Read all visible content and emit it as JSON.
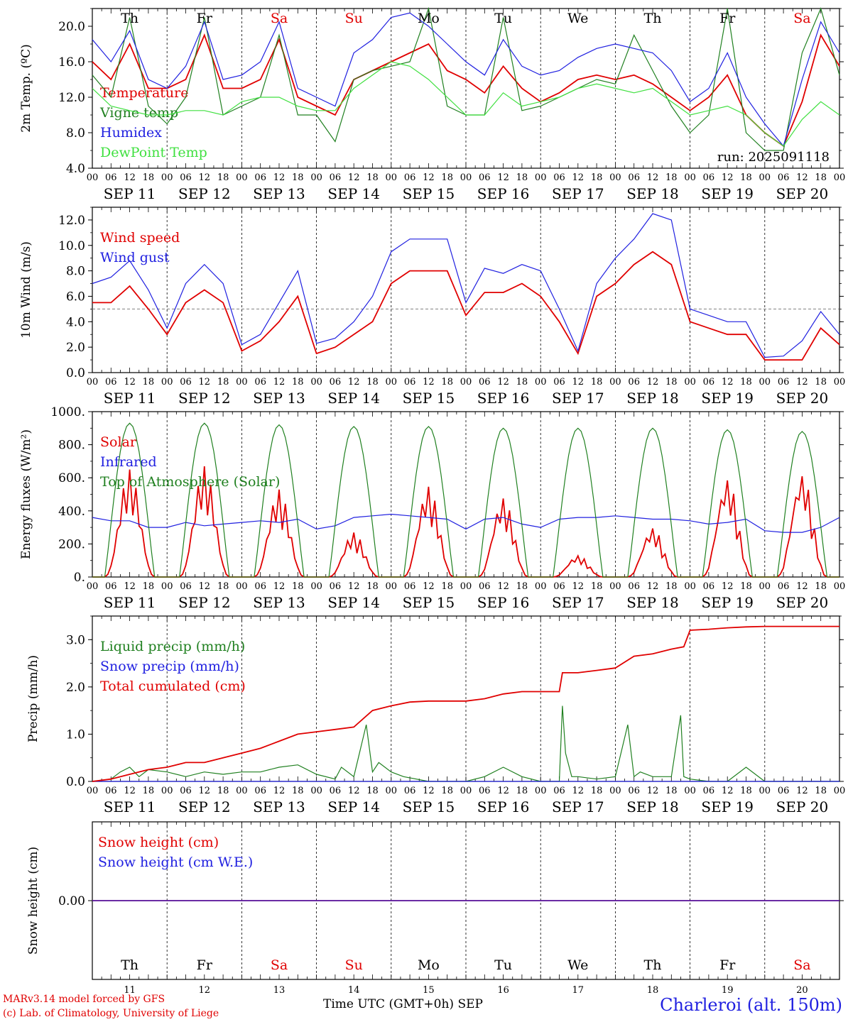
{
  "chart_data": [
    {
      "type": "line",
      "ylabel": "2m Temp. (ºC)",
      "ylim": [
        4,
        22
      ],
      "yticks": [
        "4.0",
        "8.0",
        "12.0",
        "16.0",
        "20.0"
      ],
      "ytick_values": [
        4,
        8,
        12,
        16,
        20
      ],
      "annotation": "run: 2025091118",
      "top_day_labels": [
        "Th",
        "Fr",
        "Sa",
        "Su",
        "Mo",
        "Tu",
        "We",
        "Th",
        "Fr",
        "Sa"
      ],
      "series": [
        {
          "name": "Temperature",
          "color": "#e00000",
          "x": [
            0,
            6,
            12,
            18,
            24,
            30,
            36,
            42,
            48,
            54,
            60,
            66,
            72,
            78,
            84,
            90,
            96,
            102,
            108,
            114,
            120,
            126,
            132,
            138,
            144,
            150,
            156,
            162,
            168,
            174,
            180,
            186,
            192,
            198,
            204,
            210,
            216,
            222,
            228,
            234,
            240
          ],
          "values": [
            16,
            14,
            18,
            13,
            13,
            14,
            19,
            13,
            13,
            14,
            18.5,
            12,
            11,
            10,
            14,
            15,
            16,
            17,
            18,
            15,
            14,
            12.5,
            15.5,
            13,
            11.5,
            12.5,
            14,
            14.5,
            14,
            14.5,
            13.5,
            12,
            10.5,
            12,
            14.5,
            10,
            8,
            6.5,
            11.5,
            19,
            15.5
          ]
        },
        {
          "name": "Vigne temp",
          "color": "#208020",
          "x": [
            0,
            6,
            12,
            18,
            24,
            30,
            36,
            42,
            48,
            54,
            60,
            66,
            72,
            78,
            84,
            90,
            96,
            102,
            108,
            114,
            120,
            126,
            132,
            138,
            144,
            150,
            156,
            162,
            168,
            174,
            180,
            186,
            192,
            198,
            204,
            210,
            216,
            222,
            228,
            234,
            240
          ],
          "values": [
            14.5,
            12,
            21,
            11,
            9,
            12,
            21,
            10,
            11,
            12,
            19,
            10,
            10,
            7,
            14,
            15,
            15.5,
            16,
            22,
            11,
            10,
            10,
            21,
            10.5,
            11,
            12,
            13,
            14,
            13.5,
            19,
            15,
            11,
            8,
            10,
            22,
            8,
            6,
            6,
            17,
            22,
            14.5
          ]
        },
        {
          "name": "Humidex",
          "color": "#2020e0",
          "x": [
            0,
            6,
            12,
            18,
            24,
            30,
            36,
            42,
            48,
            54,
            60,
            66,
            72,
            78,
            84,
            90,
            96,
            102,
            108,
            114,
            120,
            126,
            132,
            138,
            144,
            150,
            156,
            162,
            168,
            174,
            180,
            186,
            192,
            198,
            204,
            210,
            216,
            222,
            228,
            234,
            240
          ],
          "values": [
            18.5,
            16,
            19.5,
            14,
            13,
            15.5,
            20.5,
            14,
            14.5,
            16,
            20.5,
            13,
            12,
            11,
            17,
            18.5,
            21,
            21.5,
            20,
            18,
            16,
            14.5,
            18.5,
            15.5,
            14.5,
            15,
            16.5,
            17.5,
            18,
            17.5,
            17,
            15,
            11.5,
            13,
            17,
            12,
            9,
            6.5,
            14,
            20.5,
            17
          ]
        },
        {
          "name": "DewPoint Temp",
          "color": "#40e040",
          "x": [
            0,
            6,
            12,
            18,
            24,
            30,
            36,
            42,
            48,
            54,
            60,
            66,
            72,
            78,
            84,
            90,
            96,
            102,
            108,
            114,
            120,
            126,
            132,
            138,
            144,
            150,
            156,
            162,
            168,
            174,
            180,
            186,
            192,
            198,
            204,
            210,
            216,
            222,
            228,
            234,
            240
          ],
          "values": [
            13,
            11,
            10.5,
            10,
            10,
            10.5,
            10.5,
            10,
            11.5,
            12,
            12,
            11,
            10.5,
            10.5,
            13,
            14.5,
            16,
            15.5,
            14,
            12,
            10,
            10,
            12.5,
            11,
            11.5,
            12,
            13,
            13.5,
            13,
            12.5,
            13,
            11.5,
            10,
            10.5,
            11,
            10,
            8,
            6.5,
            9.5,
            11.5,
            10
          ]
        }
      ]
    },
    {
      "type": "line",
      "ylabel": "10m Wind (m/s)",
      "ylim": [
        0,
        13
      ],
      "yticks": [
        "0.0",
        "2.0",
        "4.0",
        "6.0",
        "8.0",
        "10.0",
        "12.0"
      ],
      "ytick_values": [
        0,
        2,
        4,
        6,
        8,
        10,
        12
      ],
      "reference_line": 5,
      "series": [
        {
          "name": "Wind speed",
          "color": "#e00000",
          "x": [
            0,
            6,
            12,
            18,
            24,
            30,
            36,
            42,
            48,
            54,
            60,
            66,
            72,
            78,
            84,
            90,
            96,
            102,
            108,
            114,
            120,
            126,
            132,
            138,
            144,
            150,
            156,
            162,
            168,
            174,
            180,
            186,
            192,
            198,
            204,
            210,
            216,
            222,
            228,
            234,
            240
          ],
          "values": [
            5.5,
            5.5,
            6.8,
            5,
            3,
            5.5,
            6.5,
            5.5,
            1.7,
            2.5,
            4,
            6,
            1.5,
            2,
            3,
            4,
            7,
            8,
            8,
            8,
            4.5,
            6.3,
            6.3,
            7,
            6,
            4,
            1.5,
            6,
            7,
            8.5,
            9.5,
            8.5,
            4,
            3.5,
            3,
            3,
            1,
            1,
            1,
            3.5,
            2.2
          ]
        },
        {
          "name": "Wind gust",
          "color": "#2020e0",
          "x": [
            0,
            6,
            12,
            18,
            24,
            30,
            36,
            42,
            48,
            54,
            60,
            66,
            72,
            78,
            84,
            90,
            96,
            102,
            108,
            114,
            120,
            126,
            132,
            138,
            144,
            150,
            156,
            162,
            168,
            174,
            180,
            186,
            192,
            198,
            204,
            210,
            216,
            222,
            228,
            234,
            240
          ],
          "values": [
            7,
            7.5,
            8.8,
            6.5,
            3.5,
            7,
            8.5,
            7,
            2.2,
            3,
            5.5,
            8,
            2.3,
            2.7,
            4,
            6,
            9.5,
            10.5,
            10.5,
            10.5,
            5.5,
            8.2,
            7.8,
            8.5,
            8,
            5,
            1.7,
            7,
            9,
            10.5,
            12.5,
            12,
            5,
            4.5,
            4,
            4,
            1.2,
            1.3,
            2.5,
            4.8,
            3
          ]
        }
      ]
    },
    {
      "type": "line",
      "ylabel": "Energy fluxes (W/m²)",
      "ylim": [
        0,
        1000
      ],
      "yticks": [
        "0.",
        "200.",
        "400.",
        "600.",
        "800.",
        "1000."
      ],
      "ytick_values": [
        0,
        200,
        400,
        600,
        800,
        1000
      ],
      "series": [
        {
          "name": "Solar",
          "color": "#e00000",
          "peaks": [
            650,
            670,
            530,
            270,
            550,
            480,
            130,
            300,
            600,
            630
          ]
        },
        {
          "name": "Infrared",
          "color": "#2020e0",
          "x": [
            0,
            6,
            12,
            18,
            24,
            30,
            36,
            42,
            48,
            54,
            60,
            66,
            72,
            78,
            84,
            90,
            96,
            102,
            108,
            114,
            120,
            126,
            132,
            138,
            144,
            150,
            156,
            162,
            168,
            174,
            180,
            186,
            192,
            198,
            204,
            210,
            216,
            222,
            228,
            234,
            240
          ],
          "values": [
            360,
            340,
            340,
            300,
            300,
            330,
            310,
            320,
            330,
            340,
            330,
            350,
            290,
            310,
            360,
            370,
            380,
            370,
            360,
            350,
            290,
            350,
            360,
            320,
            300,
            350,
            360,
            360,
            370,
            360,
            350,
            350,
            340,
            320,
            330,
            350,
            280,
            270,
            270,
            300,
            360
          ]
        },
        {
          "name": "Top of Atmosphere (Solar)",
          "color": "#208020",
          "peaks": [
            930,
            930,
            920,
            910,
            910,
            900,
            900,
            900,
            890,
            880
          ]
        }
      ]
    },
    {
      "type": "line",
      "ylabel": "Precip (mm/h)",
      "ylim": [
        0,
        3.5
      ],
      "yticks": [
        "0.0",
        "1.0",
        "2.0",
        "3.0"
      ],
      "ytick_values": [
        0,
        1,
        2,
        3
      ],
      "series": [
        {
          "name": "Liquid precip (mm/h)",
          "color": "#208020",
          "x": [
            0,
            6,
            9,
            12,
            15,
            18,
            24,
            30,
            36,
            42,
            48,
            54,
            60,
            66,
            72,
            78,
            80,
            84,
            88,
            90,
            92,
            96,
            100,
            108,
            120,
            126,
            132,
            138,
            144,
            150,
            151,
            152,
            154,
            156,
            162,
            168,
            172,
            174,
            176,
            180,
            186,
            189,
            190,
            192,
            198,
            204,
            210,
            216,
            222,
            228,
            234,
            240
          ],
          "values": [
            0,
            0.05,
            0.2,
            0.3,
            0.1,
            0.25,
            0.2,
            0.1,
            0.2,
            0.15,
            0.2,
            0.2,
            0.3,
            0.35,
            0.15,
            0.05,
            0.3,
            0.1,
            1.2,
            0.2,
            0.4,
            0.2,
            0.1,
            0,
            0,
            0.1,
            0.3,
            0.1,
            0,
            0,
            1.6,
            0.6,
            0.1,
            0.1,
            0.05,
            0.1,
            1.2,
            0.1,
            0.2,
            0.1,
            0.1,
            1.4,
            0.1,
            0.05,
            0,
            0,
            0.3,
            0,
            0,
            0,
            0,
            0
          ]
        },
        {
          "name": "Snow precip (mm/h)",
          "color": "#2020e0",
          "x": [
            0,
            240
          ],
          "values": [
            0,
            0
          ]
        },
        {
          "name": "Total cumulated (cm)",
          "color": "#e00000",
          "x": [
            0,
            6,
            12,
            18,
            24,
            30,
            36,
            42,
            48,
            54,
            60,
            66,
            72,
            78,
            84,
            90,
            96,
            102,
            108,
            114,
            120,
            126,
            132,
            138,
            144,
            150,
            151,
            156,
            162,
            168,
            174,
            180,
            186,
            190,
            192,
            198,
            204,
            210,
            216,
            222,
            228,
            234,
            240
          ],
          "values": [
            0,
            0.05,
            0.15,
            0.25,
            0.3,
            0.4,
            0.4,
            0.5,
            0.6,
            0.7,
            0.85,
            1,
            1.05,
            1.1,
            1.15,
            1.5,
            1.6,
            1.68,
            1.7,
            1.7,
            1.7,
            1.75,
            1.85,
            1.9,
            1.9,
            1.9,
            2.3,
            2.3,
            2.35,
            2.4,
            2.65,
            2.7,
            2.8,
            2.85,
            3.2,
            3.22,
            3.25,
            3.27,
            3.28,
            3.28,
            3.28,
            3.28,
            3.28
          ]
        }
      ]
    },
    {
      "type": "line",
      "ylabel": "Snow height (cm)",
      "ylim": [
        -1,
        1
      ],
      "yticks": [
        "0.00"
      ],
      "ytick_values": [
        0
      ],
      "series": [
        {
          "name": "Snow height (cm)",
          "color": "#e00000",
          "x": [
            0,
            240
          ],
          "values": [
            0,
            0
          ]
        },
        {
          "name": "Snow height (cm W.E.)",
          "color": "#2020e0",
          "x": [
            0,
            240
          ],
          "values": [
            0,
            0
          ]
        }
      ]
    }
  ],
  "x_axis": {
    "hour_ticks": [
      "00",
      "06",
      "12",
      "18"
    ],
    "final_tick": "00",
    "dates": [
      "SEP 11",
      "SEP 12",
      "SEP 13",
      "SEP 14",
      "SEP 15",
      "SEP 16",
      "SEP 17",
      "SEP 18",
      "SEP 19",
      "SEP 20"
    ]
  },
  "bottom_days": {
    "names": [
      "Th",
      "Fr",
      "Sa",
      "Su",
      "Mo",
      "Tu",
      "We",
      "Th",
      "Fr",
      "Sa"
    ],
    "numbers": [
      "11",
      "12",
      "13",
      "14",
      "15",
      "16",
      "17",
      "18",
      "19",
      "20"
    ]
  },
  "colors": {
    "weekday": "#000000",
    "weekend": "#e00000",
    "axis": "#000000",
    "grid": "#808080"
  },
  "footer": {
    "model": "MARv3.14 model forced by GFS",
    "credit": "(c) Lab. of Climatology, University of Liege",
    "axis_title": "Time UTC (GMT+0h) SEP",
    "station": "Charleroi (alt. 150m)"
  }
}
